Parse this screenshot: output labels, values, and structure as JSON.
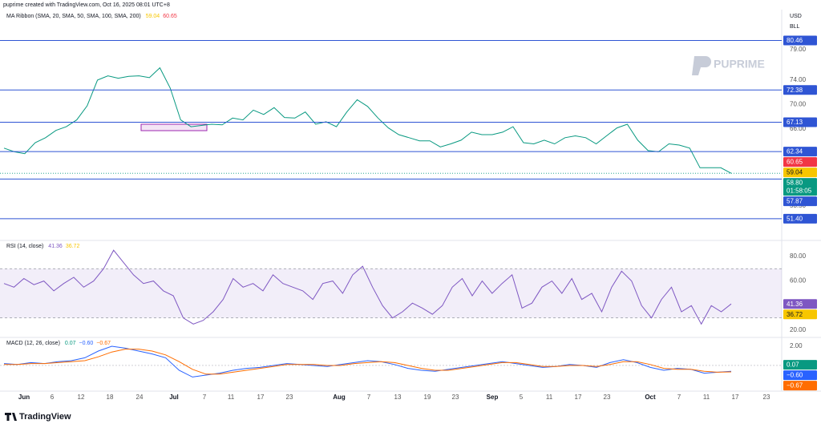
{
  "header": {
    "credit": "puprime created with TradingView.com, Oct 16, 2025 08:01 UTC+8",
    "currency": "USD",
    "unit": "BLL",
    "logo": "PUPRIME"
  },
  "footer": {
    "brand": "TradingView"
  },
  "time_axis": [
    "Jun",
    "6",
    "12",
    "18",
    "24",
    "Jul",
    "7",
    "11",
    "17",
    "23",
    "Aug",
    "7",
    "13",
    "19",
    "23",
    "Sep",
    "5",
    "11",
    "17",
    "23",
    "Oct",
    "7",
    "11",
    "17",
    "23"
  ],
  "chart_data": [
    {
      "type": "line",
      "title": "MA Ribbon (SMA, 20, SMA, 50, SMA, 100, SMA, 200)",
      "ylim": [
        48.5,
        85.1
      ],
      "yticks": [
        {
          "value": 79,
          "label": "79.00"
        },
        {
          "value": 74,
          "label": "74.00"
        },
        {
          "value": 70,
          "label": "70.00"
        },
        {
          "value": 66,
          "label": "66.00"
        },
        {
          "value": 53.5,
          "label": "53.50"
        }
      ],
      "grid": false,
      "series": [
        {
          "color": "#089981",
          "values": [
            62.9,
            62.3,
            62,
            63.8,
            64.6,
            65.8,
            66.4,
            67.5,
            69.8,
            74,
            74.7,
            74.3,
            74.6,
            74.7,
            74.4,
            76,
            72.7,
            67.5,
            66.4,
            66.6,
            66.8,
            66.7,
            67.8,
            67.5,
            69.1,
            68.4,
            69.5,
            67.9,
            67.8,
            68.8,
            66.8,
            67.2,
            66.4,
            68.8,
            70.8,
            69.7,
            67.8,
            66.2,
            65.1,
            64.6,
            64.1,
            64.1,
            63.1,
            63.6,
            64.2,
            65.5,
            65.1,
            65.1,
            65.5,
            66.4,
            63.8,
            63.6,
            64.2,
            63.6,
            64.6,
            64.9,
            64.6,
            63.6,
            64.9,
            66.2,
            66.8,
            64.2,
            62.5,
            62.3,
            63.6,
            63.4,
            62.9,
            59.7,
            59.7,
            59.7,
            58.8
          ]
        }
      ],
      "levels": [
        80.46,
        72.38,
        67.13,
        62.34,
        57.87,
        {
          "value": 51.4,
          "label": "51.40"
        }
      ],
      "level_color": "#2f55d4",
      "markers": [
        {
          "value": 59.04,
          "color": "#f7c600",
          "text_color": "#131722"
        },
        {
          "value": 60.65,
          "color": "#f23645",
          "text_color": "#ffffff"
        }
      ],
      "last": {
        "value": 58.8,
        "label": "58.80",
        "countdown": "01:58:05",
        "color": "#089981"
      }
    },
    {
      "type": "line",
      "title": "RSI (14, close)",
      "ylim": [
        16.1,
        89.7
      ],
      "yticks": [
        {
          "value": 80,
          "label": "80.00"
        },
        {
          "value": 60,
          "label": "60.00"
        },
        {
          "value": 20,
          "label": "20.00"
        }
      ],
      "grid": false,
      "band": [
        30,
        70
      ],
      "series": [
        {
          "color": "#7e57c2",
          "values": [
            58,
            55,
            62,
            57,
            60,
            52,
            58,
            63,
            55,
            60,
            70,
            85,
            75,
            65,
            58,
            60,
            52,
            48,
            30,
            25,
            28,
            35,
            45,
            62,
            55,
            58,
            52,
            65,
            58,
            55,
            52,
            45,
            58,
            60,
            50,
            65,
            72,
            55,
            40,
            30,
            35,
            42,
            38,
            33,
            40,
            55,
            62,
            48,
            60,
            50,
            58,
            65,
            38,
            42,
            55,
            60,
            50,
            62,
            45,
            50,
            35,
            55,
            68,
            60,
            40,
            30,
            45,
            55,
            35,
            40,
            25,
            40,
            35,
            41.36
          ]
        }
      ],
      "markers": [
        {
          "value": 41.36,
          "color": "#7e57c2",
          "text_color": "#ffffff"
        },
        {
          "value": 36.72,
          "color": "#f7c600",
          "text_color": "#131722"
        }
      ]
    },
    {
      "type": "line",
      "title": "MACD (12, 26, close)",
      "ylim": [
        -2.42,
        2.58
      ],
      "yticks": [
        {
          "value": 2,
          "label": "2.00"
        }
      ],
      "grid": false,
      "zero_line": true,
      "series": [
        {
          "color": "#2962ff",
          "values": [
            0.2,
            0.1,
            0.3,
            0.2,
            0.4,
            0.5,
            0.8,
            1.5,
            2.0,
            1.8,
            1.5,
            1.2,
            0.8,
            -0.5,
            -1.2,
            -1.0,
            -0.8,
            -0.5,
            -0.3,
            -0.2,
            0.0,
            0.2,
            0.1,
            0.0,
            -0.1,
            0.1,
            0.3,
            0.5,
            0.4,
            0.1,
            -0.3,
            -0.5,
            -0.6,
            -0.4,
            -0.2,
            0.0,
            0.2,
            0.4,
            0.2,
            0.0,
            -0.2,
            -0.1,
            0.1,
            0.0,
            -0.2,
            0.3,
            0.6,
            0.3,
            -0.2,
            -0.5,
            -0.3,
            -0.4,
            -0.8,
            -0.7,
            -0.6
          ]
        },
        {
          "color": "#ff6d00",
          "values": [
            0.1,
            0.1,
            0.2,
            0.2,
            0.3,
            0.4,
            0.5,
            0.9,
            1.4,
            1.7,
            1.7,
            1.5,
            1.1,
            0.4,
            -0.4,
            -0.9,
            -0.9,
            -0.7,
            -0.5,
            -0.3,
            -0.1,
            0.1,
            0.1,
            0.1,
            0.0,
            0.0,
            0.2,
            0.3,
            0.4,
            0.3,
            0.0,
            -0.3,
            -0.5,
            -0.5,
            -0.3,
            -0.1,
            0.1,
            0.3,
            0.3,
            0.1,
            -0.1,
            -0.1,
            0.0,
            0.0,
            -0.1,
            0.1,
            0.4,
            0.4,
            0.1,
            -0.3,
            -0.4,
            -0.4,
            -0.6,
            -0.7,
            -0.67
          ]
        }
      ],
      "markers": [
        {
          "value": 0.07,
          "label": "0.07",
          "color": "#089981",
          "text_color": "#ffffff"
        },
        {
          "value": -0.6,
          "label": "−0.60",
          "color": "#2962ff",
          "text_color": "#ffffff"
        },
        {
          "value": -0.67,
          "label": "−0.67",
          "color": "#ff6d00",
          "text_color": "#ffffff"
        }
      ]
    }
  ]
}
